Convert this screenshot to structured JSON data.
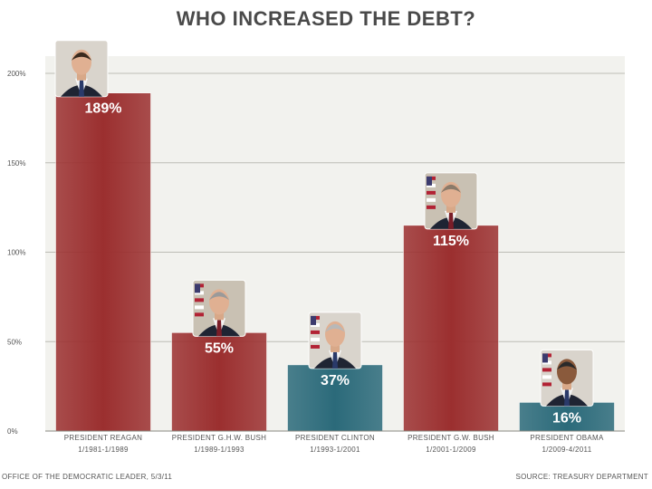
{
  "chart_data": {
    "type": "bar",
    "title": "WHO INCREASED THE DEBT?",
    "categories": [
      {
        "name": "PRESIDENT REAGAN",
        "period": "1/1981-1/1989"
      },
      {
        "name": "PRESIDENT G.H.W. BUSH",
        "period": "1/1989-1/1993"
      },
      {
        "name": "PRESIDENT CLINTON",
        "period": "1/1993-1/2001"
      },
      {
        "name": "PRESIDENT G.W. BUSH",
        "period": "1/2001-1/2009"
      },
      {
        "name": "PRESIDENT OBAMA",
        "period": "1/2009-4/2011"
      }
    ],
    "values": [
      189,
      55,
      37,
      115,
      16
    ],
    "value_labels": [
      "189%",
      "55%",
      "37%",
      "115%",
      "16%"
    ],
    "party": [
      "republican",
      "republican",
      "democrat",
      "republican",
      "democrat"
    ],
    "bar_colors": {
      "republican": "#9b2f2f",
      "democrat": "#2b6a7a"
    },
    "y_ticks": [
      {
        "value": 0,
        "label": "0%"
      },
      {
        "value": 50,
        "label": "50%"
      },
      {
        "value": 100,
        "label": "100%"
      },
      {
        "value": 150,
        "label": "150%"
      },
      {
        "value": 200,
        "label": "200%"
      }
    ],
    "ylim": [
      0,
      200
    ],
    "grid": true,
    "plot_background": "#f2f2ee",
    "portraits": [
      "reagan-portrait",
      "hw-bush-portrait",
      "clinton-portrait",
      "gw-bush-portrait",
      "obama-portrait"
    ]
  },
  "footer": {
    "left": "Office of the Democratic Leader, 5/3/11",
    "right": "Source: Treasury Department"
  }
}
